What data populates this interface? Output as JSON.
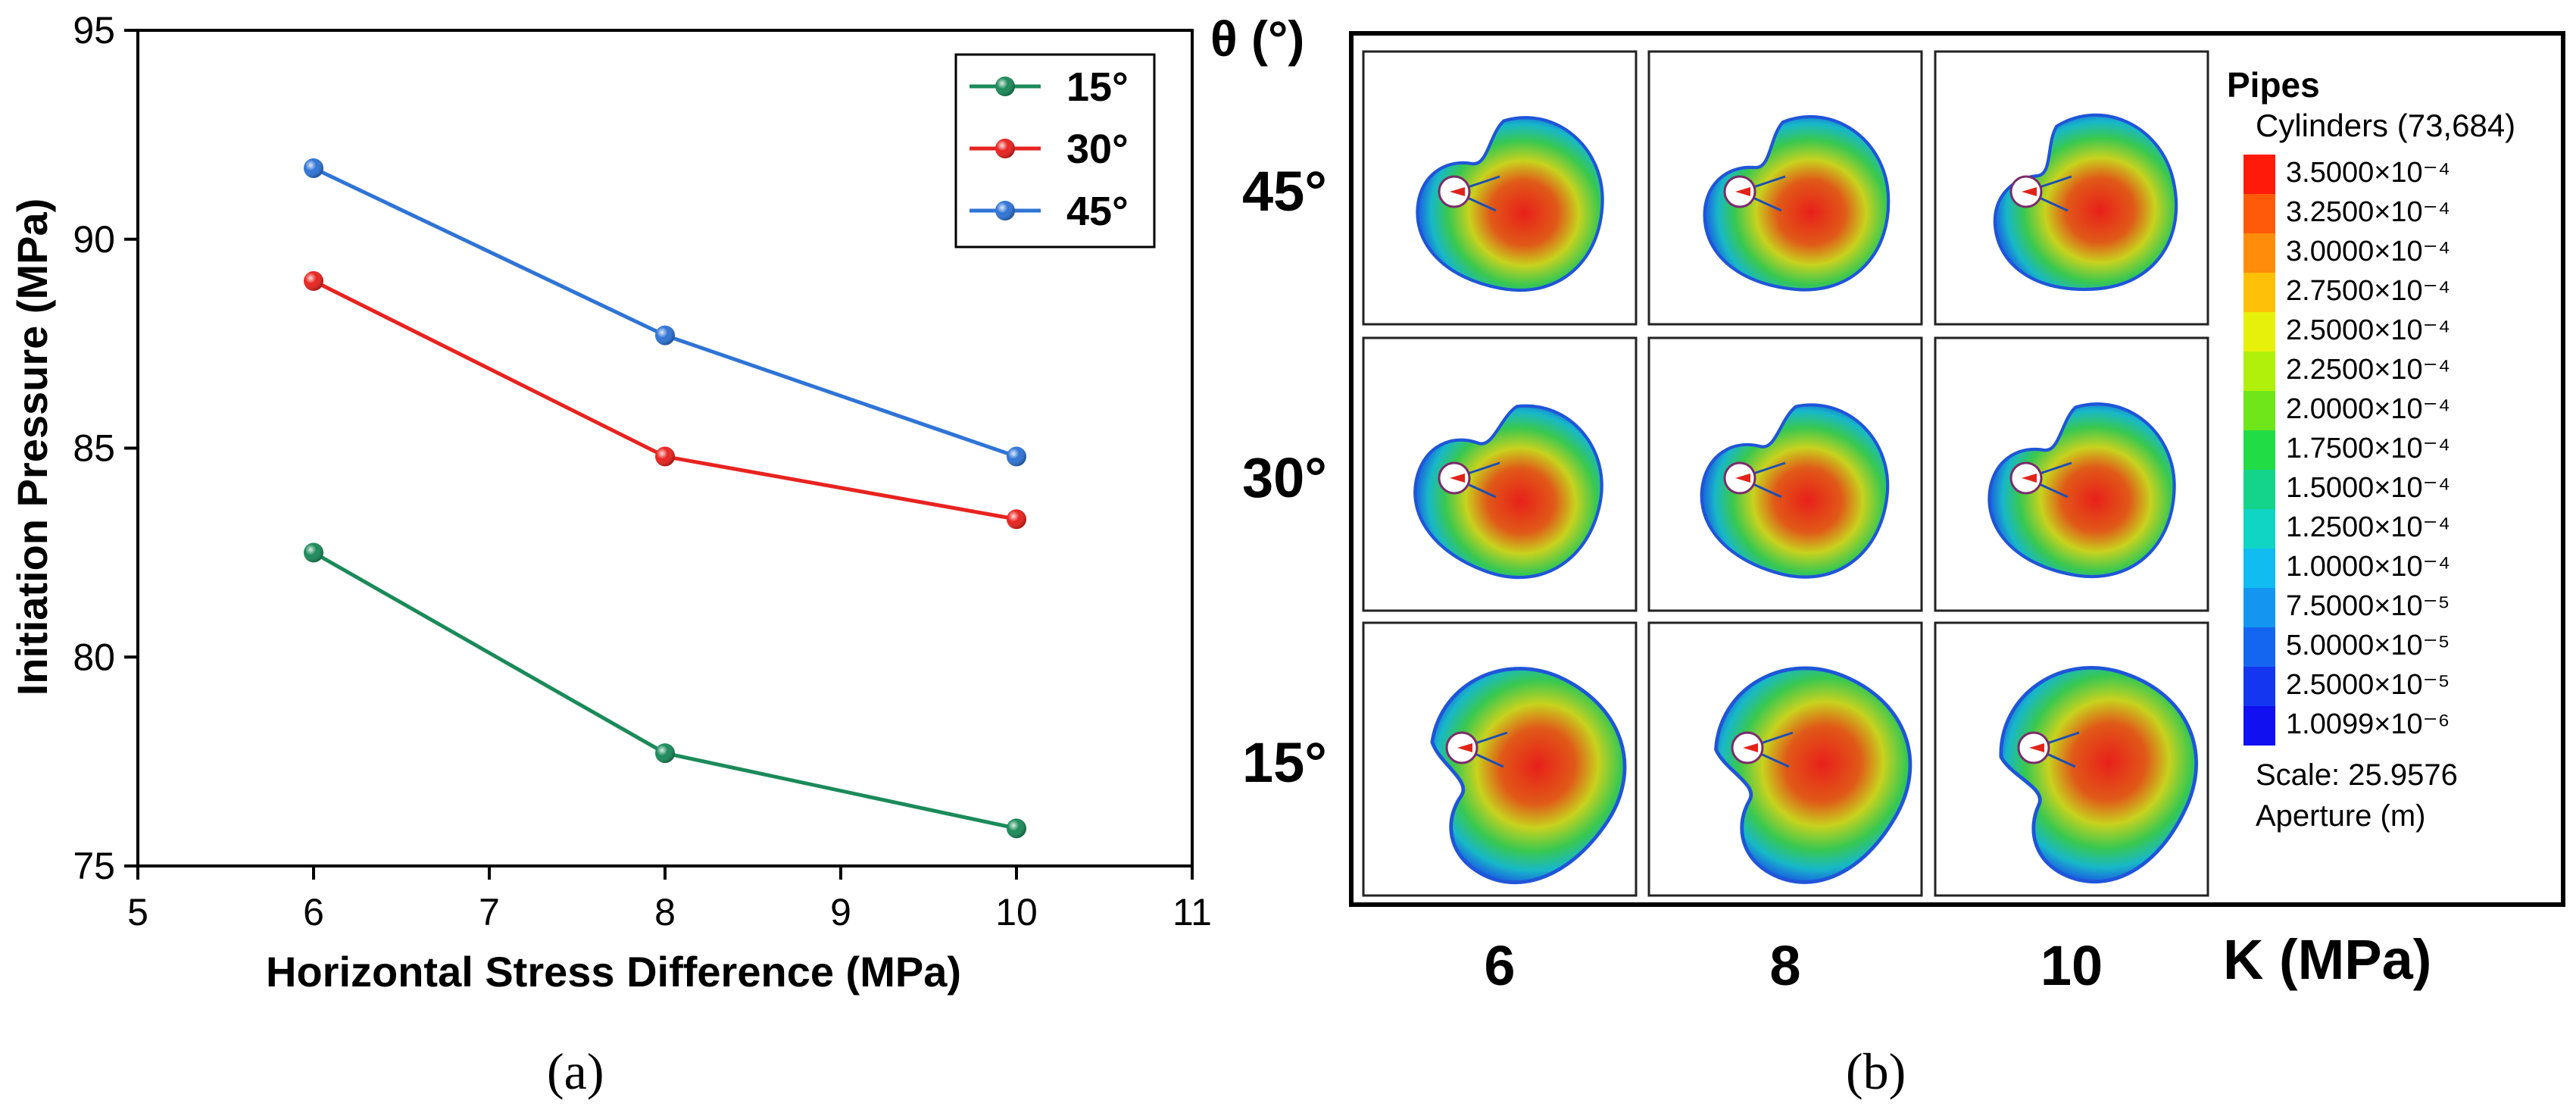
{
  "chart_data": [
    {
      "type": "line",
      "panel_label": "(a)",
      "xlabel": "Horizontal Stress Difference (MPa)",
      "ylabel": "Initiation Pressure (MPa)",
      "xlim": [
        5,
        11
      ],
      "ylim": [
        75,
        95
      ],
      "xticks": [
        "5",
        "6",
        "7",
        "8",
        "9",
        "10",
        "11"
      ],
      "yticks": [
        "75",
        "80",
        "85",
        "90",
        "95"
      ],
      "x": [
        6,
        8,
        10
      ],
      "series": [
        {
          "name": "15°",
          "color": "#1b8a5a",
          "values": [
            82.5,
            77.7,
            75.9
          ]
        },
        {
          "name": "30°",
          "color": "#e8231f",
          "values": [
            89.0,
            84.8,
            83.3
          ]
        },
        {
          "name": "45°",
          "color": "#2f74d6",
          "values": [
            91.7,
            87.7,
            84.8
          ]
        }
      ],
      "legend_position": "top-right",
      "grid": false
    },
    {
      "type": "heatmap",
      "panel_label": "(b)",
      "row_axis_label": "θ (°)",
      "col_axis_label": "K (MPa)",
      "rows": [
        "45°",
        "30°",
        "15°"
      ],
      "columns": [
        "6",
        "8",
        "10"
      ],
      "colorbar": {
        "title": "Pipes",
        "subtitle": "Cylinders (73,684)",
        "levels": [
          "3.5000×10⁻⁴",
          "3.2500×10⁻⁴",
          "3.0000×10⁻⁴",
          "2.7500×10⁻⁴",
          "2.5000×10⁻⁴",
          "2.2500×10⁻⁴",
          "2.0000×10⁻⁴",
          "1.7500×10⁻⁴",
          "1.5000×10⁻⁴",
          "1.2500×10⁻⁴",
          "1.0000×10⁻⁴",
          "7.5000×10⁻⁵",
          "5.0000×10⁻⁵",
          "2.5000×10⁻⁵",
          "1.0099×10⁻⁶"
        ],
        "colors": [
          "#ff1a0a",
          "#ff5a0a",
          "#ff8c0a",
          "#ffc00a",
          "#e6f00a",
          "#b0f00a",
          "#6ee61a",
          "#22dc46",
          "#14d48c",
          "#10d4c4",
          "#10bcf0",
          "#1496f0",
          "#1466f0",
          "#1436f0",
          "#1010f0"
        ],
        "scale_label": "Scale: 25.9576",
        "unit_label": "Aperture (m)"
      }
    }
  ]
}
